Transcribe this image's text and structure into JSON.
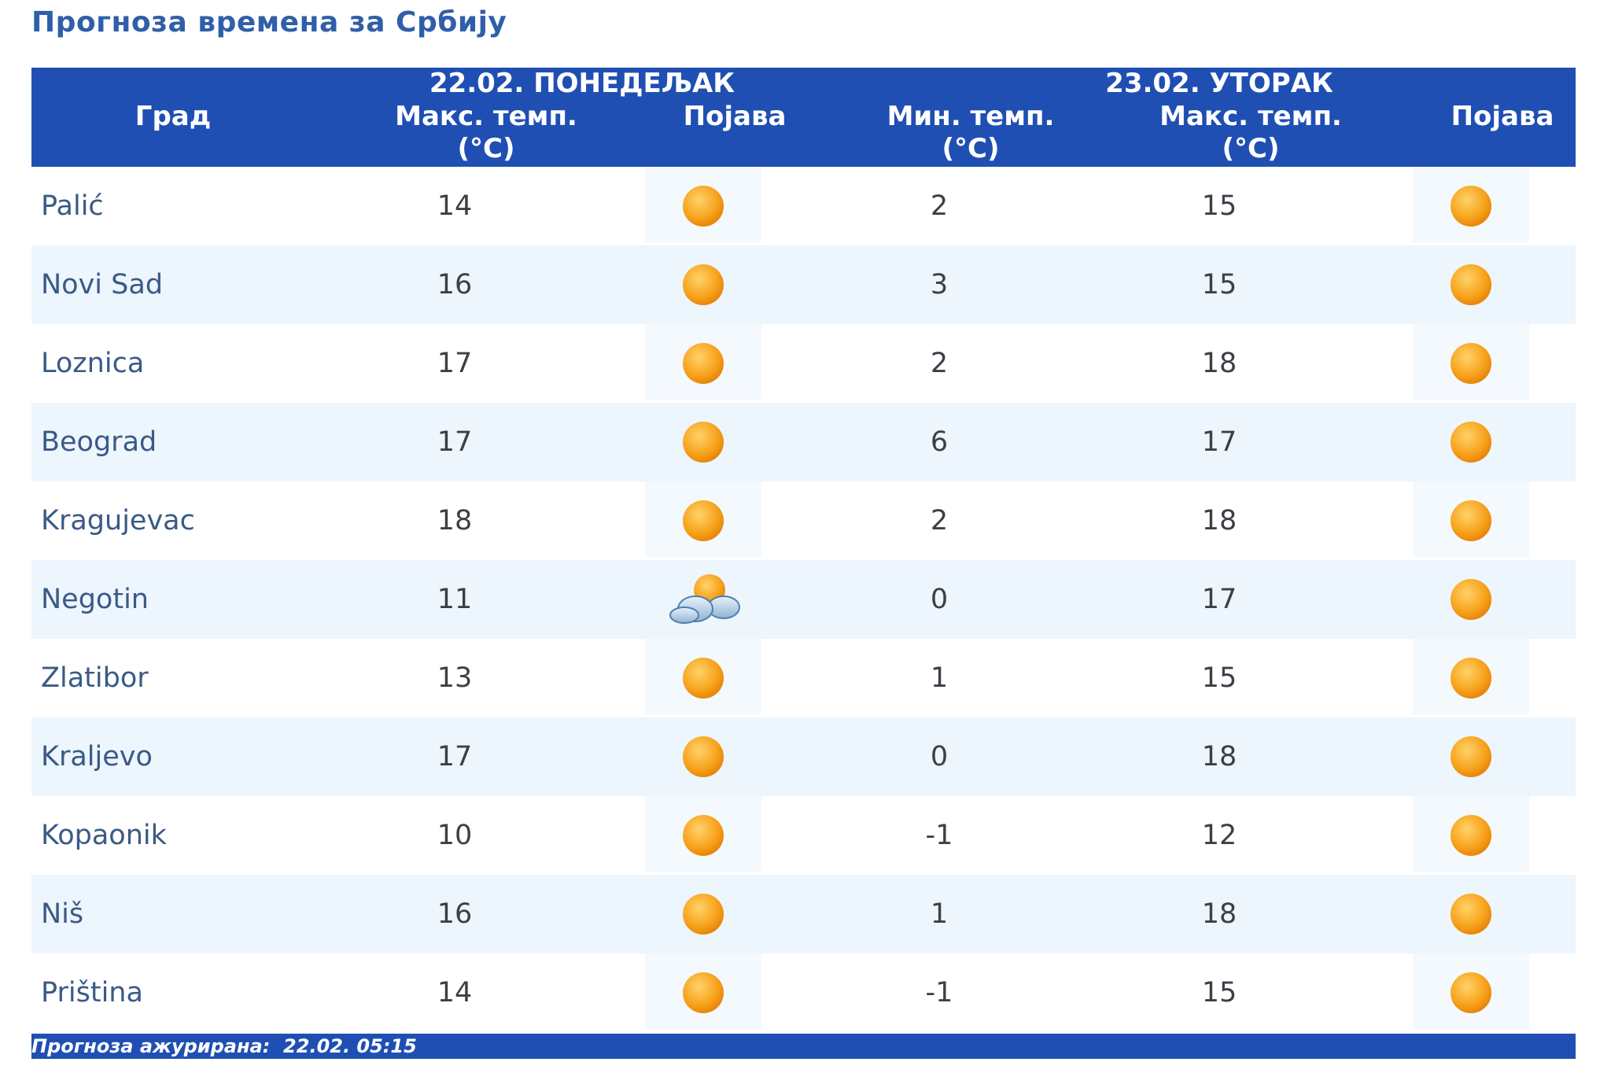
{
  "title": "Прогноза времена за Србију",
  "header": {
    "city": "Град",
    "day1": "22.02. ПОНЕДЕЉАК",
    "day2": "23.02. УТОРАК",
    "max_label": "Макс. темп.",
    "min_label": "Мин. темп.",
    "unit": "(°C)",
    "phenomenon": "Појава"
  },
  "rows": [
    {
      "city": "Palić",
      "max1": "14",
      "icon1": "sun-icon",
      "min2": "2",
      "max2": "15",
      "icon2": "sun-icon"
    },
    {
      "city": "Novi Sad",
      "max1": "16",
      "icon1": "sun-icon",
      "min2": "3",
      "max2": "15",
      "icon2": "sun-icon"
    },
    {
      "city": "Loznica",
      "max1": "17",
      "icon1": "sun-icon",
      "min2": "2",
      "max2": "18",
      "icon2": "sun-icon"
    },
    {
      "city": "Beograd",
      "max1": "17",
      "icon1": "sun-icon",
      "min2": "6",
      "max2": "17",
      "icon2": "sun-icon"
    },
    {
      "city": "Kragujevac",
      "max1": "18",
      "icon1": "sun-icon",
      "min2": "2",
      "max2": "18",
      "icon2": "sun-icon"
    },
    {
      "city": "Negotin",
      "max1": "11",
      "icon1": "partly-cloudy-icon",
      "min2": "0",
      "max2": "17",
      "icon2": "sun-icon"
    },
    {
      "city": "Zlatibor",
      "max1": "13",
      "icon1": "sun-icon",
      "min2": "1",
      "max2": "15",
      "icon2": "sun-icon"
    },
    {
      "city": "Kraljevo",
      "max1": "17",
      "icon1": "sun-icon",
      "min2": "0",
      "max2": "18",
      "icon2": "sun-icon"
    },
    {
      "city": "Kopaonik",
      "max1": "10",
      "icon1": "sun-icon",
      "min2": "-1",
      "max2": "12",
      "icon2": "sun-icon"
    },
    {
      "city": "Niš",
      "max1": "16",
      "icon1": "sun-icon",
      "min2": "1",
      "max2": "18",
      "icon2": "sun-icon"
    },
    {
      "city": "Priština",
      "max1": "14",
      "icon1": "sun-icon",
      "min2": "-1",
      "max2": "15",
      "icon2": "sun-icon"
    }
  ],
  "footer": {
    "label": "Прогноза ажурирана:",
    "value": "22.02. 05:15"
  },
  "colors": {
    "header_bg": "#1f4fb3",
    "alt_row_bg": "#edf5fd",
    "title": "#2f5fa8",
    "sun": "#f7a21b"
  }
}
